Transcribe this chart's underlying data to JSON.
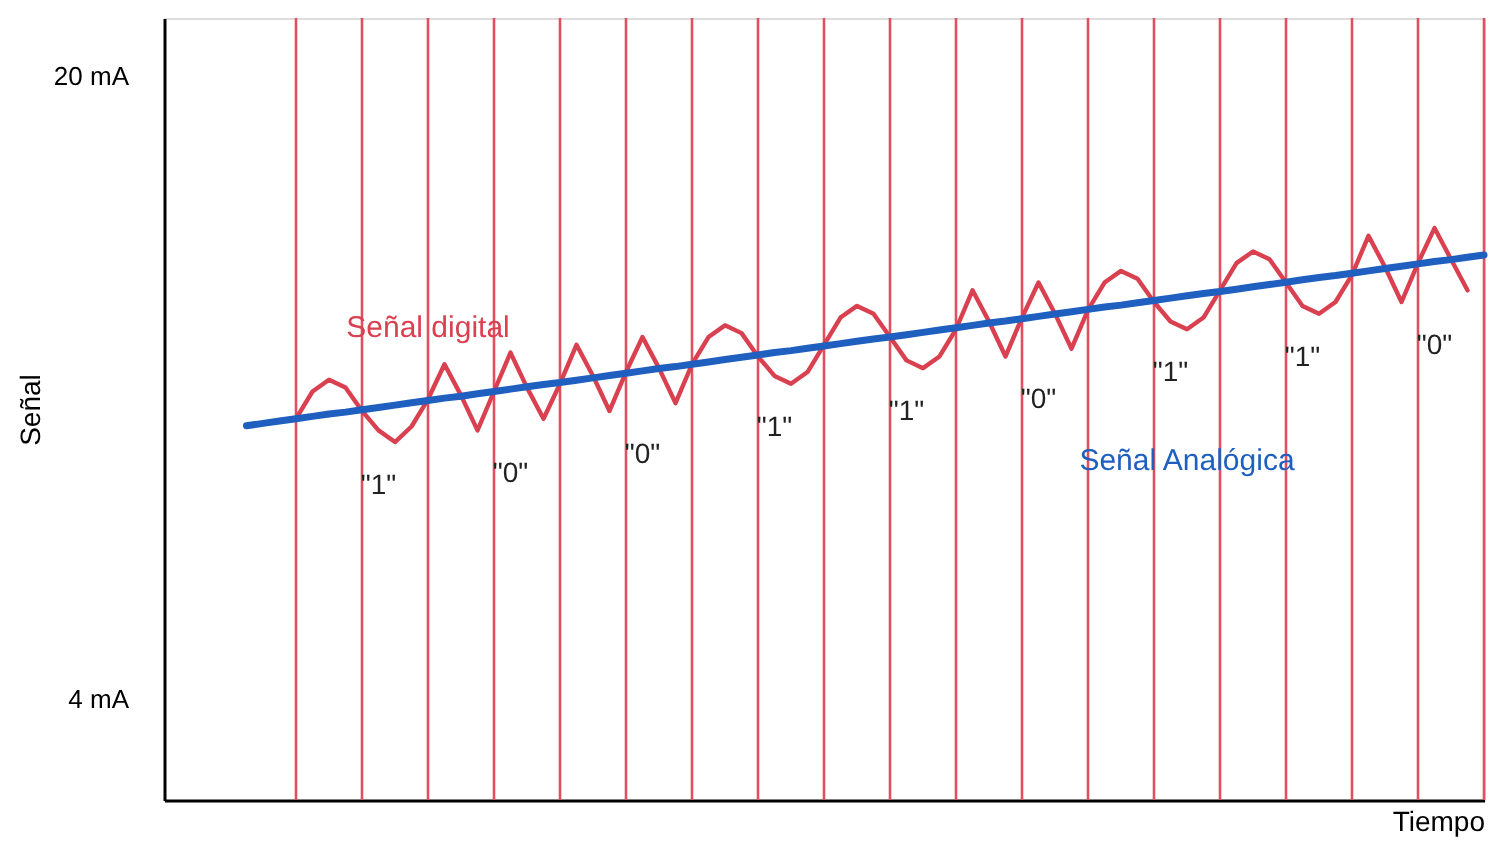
{
  "chart_data": {
    "type": "line",
    "ylabel": "Señal",
    "xlabel": "Tiempo",
    "ylim": [
      1.4,
      21.5
    ],
    "yticks": [
      {
        "value": 20,
        "label": "20 mA"
      },
      {
        "value": 4,
        "label": "4 mA"
      }
    ],
    "tick_labels": "y",
    "grid": "x",
    "marker": "none",
    "line_style": "solid",
    "categories": [
      null,
      null,
      null,
      null,
      null,
      null,
      null,
      null,
      null,
      null,
      null,
      null,
      null,
      null,
      null,
      null,
      null,
      null,
      null,
      null,
      null,
      null,
      null,
      null,
      null,
      null,
      null,
      null,
      null,
      null,
      null,
      null,
      null,
      null,
      null,
      null,
      null,
      null,
      null,
      null,
      null,
      null,
      null,
      null,
      null,
      null,
      null,
      null,
      null,
      null,
      null,
      null,
      null,
      null,
      null,
      null,
      null,
      null,
      null,
      null,
      null,
      null,
      null,
      null,
      null,
      null,
      null,
      null,
      null,
      null,
      null,
      null,
      null,
      null,
      null,
      null,
      null,
      null,
      null,
      null,
      null
    ],
    "series": [
      {
        "name": "Señal digital",
        "color": "#d94050",
        "values": [
          null,
          null,
          null,
          null,
          null,
          null,
          null,
          null,
          11.2,
          11.9,
          12.2,
          12.0,
          11.4,
          10.9,
          10.6,
          11.0,
          11.7,
          12.6,
          11.8,
          10.9,
          11.9,
          12.9,
          12.0,
          11.2,
          12.1,
          13.1,
          12.3,
          11.4,
          12.4,
          13.3,
          12.5,
          11.6,
          12.6,
          13.3,
          13.6,
          13.4,
          12.8,
          12.3,
          12.1,
          12.4,
          13.1,
          13.8,
          14.1,
          13.9,
          13.3,
          12.7,
          12.5,
          12.8,
          13.5,
          14.5,
          13.7,
          12.8,
          13.8,
          14.7,
          13.9,
          13.0,
          14.0,
          14.7,
          15.0,
          14.8,
          14.2,
          13.7,
          13.5,
          13.8,
          14.5,
          15.2,
          15.5,
          15.3,
          14.7,
          14.1,
          13.9,
          14.2,
          14.9,
          15.9,
          15.1,
          14.2,
          15.2,
          16.1,
          15.3,
          14.5,
          null
        ]
      },
      {
        "name": "Señal Analógica",
        "color": "#1f5fbf",
        "values": [
          null,
          null,
          null,
          null,
          null,
          11.02,
          11.08,
          11.14,
          11.2,
          11.26,
          11.32,
          11.37,
          11.43,
          11.49,
          11.55,
          11.61,
          11.67,
          11.73,
          11.78,
          11.84,
          11.9,
          11.96,
          12.02,
          12.08,
          12.13,
          12.19,
          12.25,
          12.31,
          12.37,
          12.43,
          12.49,
          12.54,
          12.6,
          12.66,
          12.72,
          12.78,
          12.84,
          12.9,
          12.95,
          13.01,
          13.07,
          13.13,
          13.19,
          13.25,
          13.3,
          13.36,
          13.42,
          13.48,
          13.54,
          13.6,
          13.66,
          13.71,
          13.77,
          13.83,
          13.89,
          13.95,
          14.01,
          14.07,
          14.12,
          14.18,
          14.24,
          14.3,
          14.36,
          14.42,
          14.47,
          14.53,
          14.59,
          14.65,
          14.71,
          14.77,
          14.83,
          14.88,
          14.94,
          15.0,
          15.06,
          15.12,
          15.18,
          15.24,
          15.29,
          15.35,
          15.41
        ]
      }
    ],
    "annotations": [
      "\"1\"",
      "\"0\"",
      "\"0\"",
      "\"1\"",
      "\"1\"",
      "\"0\"",
      "\"1\"",
      "\"1\"",
      "\"0\""
    ]
  }
}
